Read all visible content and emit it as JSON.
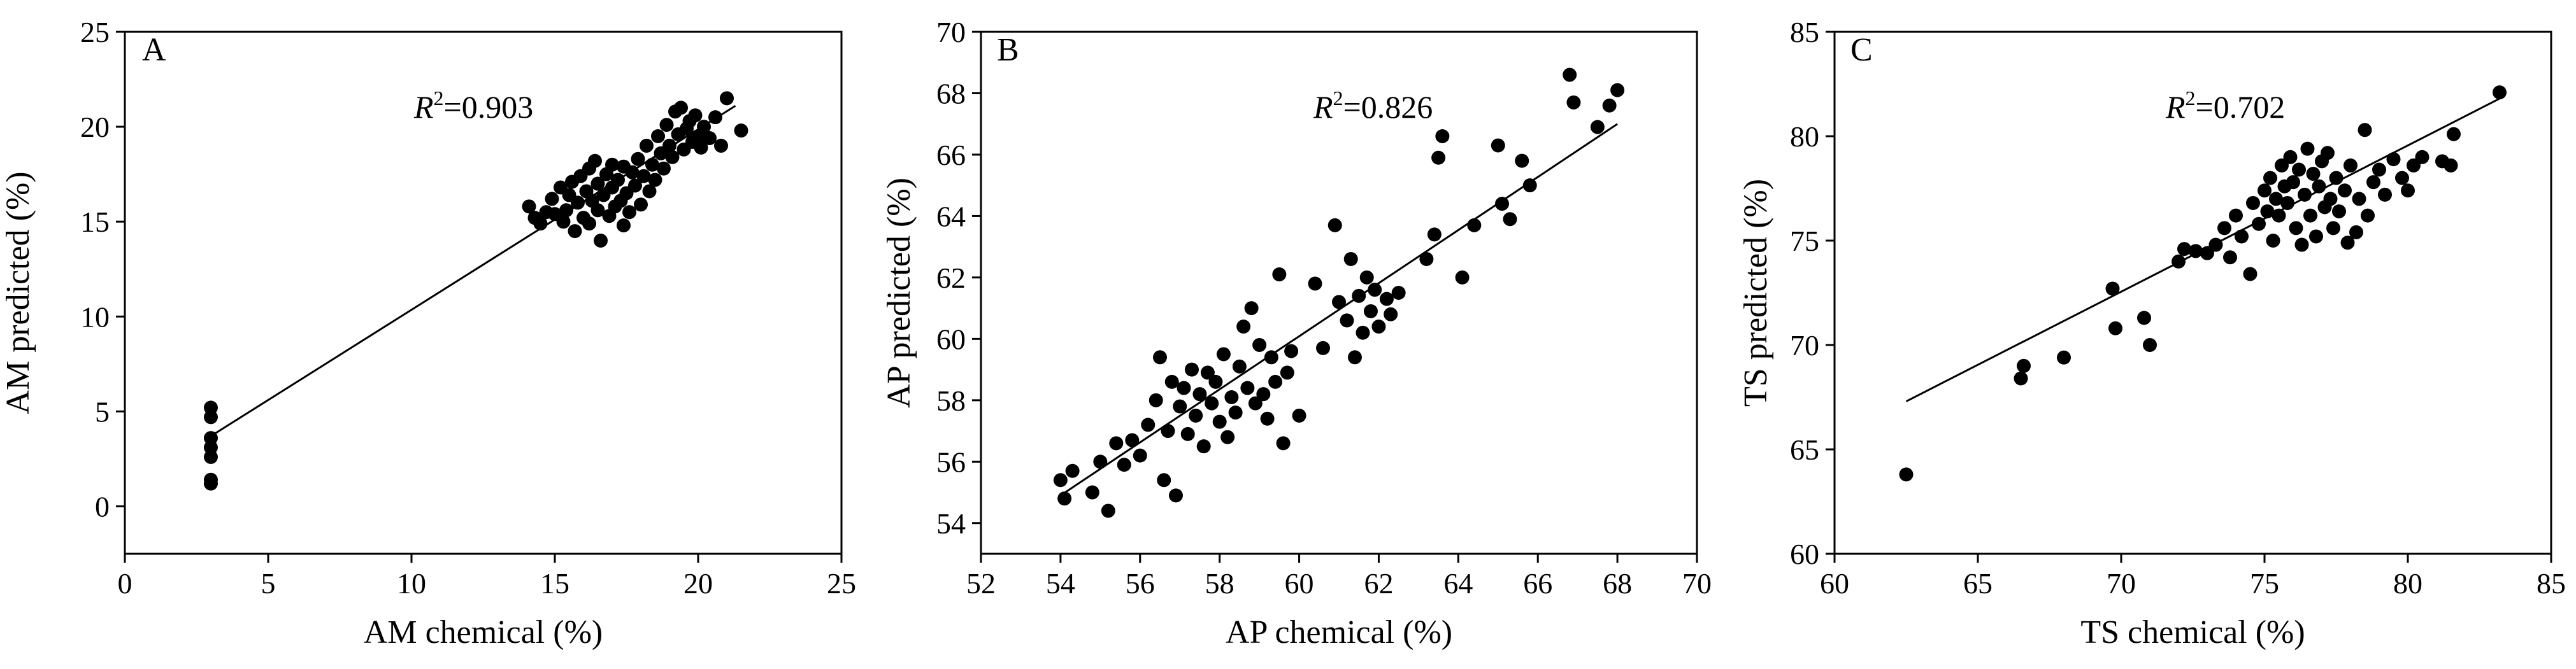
{
  "chart_data": [
    {
      "type": "scatter",
      "panel_label": "A",
      "annotation": {
        "prefix": "R",
        "sup": "2",
        "value": "=0.903"
      },
      "xlabel": "AM chemical (%)",
      "ylabel": "AM predicted (%)",
      "xlim": [
        0,
        25
      ],
      "ylim": [
        -2.5,
        25
      ],
      "xticks": [
        0,
        5,
        10,
        15,
        20,
        25
      ],
      "yticks": [
        0,
        5,
        10,
        15,
        20,
        25
      ],
      "grid": false,
      "fit_line": {
        "x": [
          3.0,
          21.3
        ],
        "y": [
          3.7,
          21.1
        ]
      },
      "points": [
        [
          3.0,
          5.2
        ],
        [
          3.0,
          4.7
        ],
        [
          3.0,
          3.6
        ],
        [
          3.0,
          3.1
        ],
        [
          3.0,
          2.6
        ],
        [
          3.0,
          1.4
        ],
        [
          3.0,
          1.2
        ],
        [
          14.1,
          15.8
        ],
        [
          14.3,
          15.2
        ],
        [
          14.5,
          14.9
        ],
        [
          14.7,
          15.5
        ],
        [
          14.9,
          16.2
        ],
        [
          15.0,
          15.4
        ],
        [
          15.2,
          16.8
        ],
        [
          15.3,
          15.0
        ],
        [
          15.4,
          15.6
        ],
        [
          15.5,
          16.4
        ],
        [
          15.6,
          17.1
        ],
        [
          15.7,
          14.5
        ],
        [
          15.8,
          16.0
        ],
        [
          15.9,
          17.4
        ],
        [
          16.0,
          15.2
        ],
        [
          16.1,
          16.6
        ],
        [
          16.2,
          17.8
        ],
        [
          16.2,
          14.9
        ],
        [
          16.3,
          16.1
        ],
        [
          16.4,
          18.2
        ],
        [
          16.5,
          15.6
        ],
        [
          16.5,
          17.0
        ],
        [
          16.6,
          14.0
        ],
        [
          16.7,
          16.4
        ],
        [
          16.8,
          17.5
        ],
        [
          16.9,
          15.3
        ],
        [
          17.0,
          16.8
        ],
        [
          17.0,
          18.0
        ],
        [
          17.1,
          15.8
        ],
        [
          17.2,
          17.2
        ],
        [
          17.3,
          16.1
        ],
        [
          17.4,
          14.8
        ],
        [
          17.4,
          17.9
        ],
        [
          17.5,
          16.5
        ],
        [
          17.6,
          15.5
        ],
        [
          17.7,
          17.6
        ],
        [
          17.8,
          16.9
        ],
        [
          17.9,
          18.3
        ],
        [
          18.0,
          15.9
        ],
        [
          18.1,
          17.4
        ],
        [
          18.2,
          19.0
        ],
        [
          18.3,
          16.6
        ],
        [
          18.4,
          18.0
        ],
        [
          18.5,
          17.2
        ],
        [
          18.6,
          19.5
        ],
        [
          18.7,
          18.6
        ],
        [
          18.8,
          17.8
        ],
        [
          18.9,
          20.1
        ],
        [
          19.0,
          19.0
        ],
        [
          19.1,
          18.4
        ],
        [
          19.2,
          20.8
        ],
        [
          19.3,
          19.6
        ],
        [
          19.4,
          21.0
        ],
        [
          19.5,
          18.8
        ],
        [
          19.6,
          19.9
        ],
        [
          19.7,
          20.3
        ],
        [
          19.8,
          19.2
        ],
        [
          19.9,
          20.6
        ],
        [
          20.0,
          19.5
        ],
        [
          20.1,
          18.9
        ],
        [
          20.2,
          20.0
        ],
        [
          20.4,
          19.4
        ],
        [
          20.6,
          20.5
        ],
        [
          20.8,
          19.0
        ],
        [
          21.0,
          21.5
        ],
        [
          21.5,
          19.8
        ]
      ]
    },
    {
      "type": "scatter",
      "panel_label": "B",
      "annotation": {
        "prefix": "R",
        "sup": "2",
        "value": "=0.826"
      },
      "xlabel": "AP chemical (%)",
      "ylabel": "AP predicted (%)",
      "xlim": [
        52,
        70
      ],
      "ylim": [
        53,
        70
      ],
      "xticks": [
        52,
        54,
        56,
        58,
        60,
        62,
        64,
        66,
        68,
        70
      ],
      "yticks": [
        54,
        56,
        58,
        60,
        62,
        64,
        66,
        68,
        70
      ],
      "grid": false,
      "fit_line": {
        "x": [
          54.0,
          68.0
        ],
        "y": [
          54.9,
          67.0
        ]
      },
      "points": [
        [
          54.0,
          55.4
        ],
        [
          54.1,
          54.8
        ],
        [
          54.3,
          55.7
        ],
        [
          54.8,
          55.0
        ],
        [
          55.0,
          56.0
        ],
        [
          55.2,
          54.4
        ],
        [
          55.4,
          56.6
        ],
        [
          55.6,
          55.9
        ],
        [
          55.8,
          56.7
        ],
        [
          56.0,
          56.2
        ],
        [
          56.2,
          57.2
        ],
        [
          56.4,
          58.0
        ],
        [
          56.5,
          59.4
        ],
        [
          56.6,
          55.4
        ],
        [
          56.7,
          57.0
        ],
        [
          56.8,
          58.6
        ],
        [
          56.9,
          54.9
        ],
        [
          57.0,
          57.8
        ],
        [
          57.1,
          58.4
        ],
        [
          57.2,
          56.9
        ],
        [
          57.3,
          59.0
        ],
        [
          57.4,
          57.5
        ],
        [
          57.5,
          58.2
        ],
        [
          57.6,
          56.5
        ],
        [
          57.7,
          58.9
        ],
        [
          57.8,
          57.9
        ],
        [
          57.9,
          58.6
        ],
        [
          58.0,
          57.3
        ],
        [
          58.1,
          59.5
        ],
        [
          58.2,
          56.8
        ],
        [
          58.3,
          58.1
        ],
        [
          58.4,
          57.6
        ],
        [
          58.5,
          59.1
        ],
        [
          58.6,
          60.4
        ],
        [
          58.7,
          58.4
        ],
        [
          58.8,
          61.0
        ],
        [
          58.9,
          57.9
        ],
        [
          59.0,
          59.8
        ],
        [
          59.1,
          58.2
        ],
        [
          59.2,
          57.4
        ],
        [
          59.3,
          59.4
        ],
        [
          59.4,
          58.6
        ],
        [
          59.5,
          62.1
        ],
        [
          59.6,
          56.6
        ],
        [
          59.7,
          58.9
        ],
        [
          59.8,
          59.6
        ],
        [
          60.0,
          57.5
        ],
        [
          60.4,
          61.8
        ],
        [
          60.6,
          59.7
        ],
        [
          60.9,
          63.7
        ],
        [
          61.0,
          61.2
        ],
        [
          61.2,
          60.6
        ],
        [
          61.3,
          62.6
        ],
        [
          61.4,
          59.4
        ],
        [
          61.5,
          61.4
        ],
        [
          61.6,
          60.2
        ],
        [
          61.7,
          62.0
        ],
        [
          61.8,
          60.9
        ],
        [
          61.9,
          61.6
        ],
        [
          62.0,
          60.4
        ],
        [
          62.2,
          61.3
        ],
        [
          62.3,
          60.8
        ],
        [
          62.5,
          61.5
        ],
        [
          63.2,
          62.6
        ],
        [
          63.4,
          63.4
        ],
        [
          63.5,
          65.9
        ],
        [
          63.6,
          66.6
        ],
        [
          64.1,
          62.0
        ],
        [
          64.4,
          63.7
        ],
        [
          65.0,
          66.3
        ],
        [
          65.1,
          64.4
        ],
        [
          65.3,
          63.9
        ],
        [
          65.6,
          65.8
        ],
        [
          65.8,
          65.0
        ],
        [
          66.8,
          68.6
        ],
        [
          66.9,
          67.7
        ],
        [
          67.5,
          66.9
        ],
        [
          67.8,
          67.6
        ],
        [
          68.0,
          68.1
        ]
      ]
    },
    {
      "type": "scatter",
      "panel_label": "C",
      "annotation": {
        "prefix": "R",
        "sup": "2",
        "value": "=0.702"
      },
      "xlabel": "TS chemical (%)",
      "ylabel": "TS predicted (%)",
      "xlim": [
        60,
        85
      ],
      "ylim": [
        60,
        85
      ],
      "xticks": [
        60,
        65,
        70,
        75,
        80,
        85
      ],
      "yticks": [
        60,
        65,
        70,
        75,
        80,
        85
      ],
      "grid": false,
      "fit_line": {
        "x": [
          62.5,
          83.2
        ],
        "y": [
          67.3,
          81.8
        ]
      },
      "points": [
        [
          62.5,
          63.8
        ],
        [
          66.5,
          68.4
        ],
        [
          66.6,
          69.0
        ],
        [
          68.0,
          69.4
        ],
        [
          69.7,
          72.7
        ],
        [
          69.8,
          70.8
        ],
        [
          70.8,
          71.3
        ],
        [
          71.0,
          70.0
        ],
        [
          72.0,
          74.0
        ],
        [
          72.2,
          74.6
        ],
        [
          72.6,
          74.5
        ],
        [
          73.0,
          74.4
        ],
        [
          73.3,
          74.8
        ],
        [
          73.6,
          75.6
        ],
        [
          73.8,
          74.2
        ],
        [
          74.0,
          76.2
        ],
        [
          74.2,
          75.2
        ],
        [
          74.5,
          73.4
        ],
        [
          74.6,
          76.8
        ],
        [
          74.8,
          75.8
        ],
        [
          75.0,
          77.4
        ],
        [
          75.1,
          76.4
        ],
        [
          75.2,
          78.0
        ],
        [
          75.3,
          75.0
        ],
        [
          75.4,
          77.0
        ],
        [
          75.5,
          76.2
        ],
        [
          75.6,
          78.6
        ],
        [
          75.7,
          77.6
        ],
        [
          75.8,
          76.8
        ],
        [
          75.9,
          79.0
        ],
        [
          76.0,
          77.8
        ],
        [
          76.1,
          75.6
        ],
        [
          76.2,
          78.4
        ],
        [
          76.3,
          74.8
        ],
        [
          76.4,
          77.2
        ],
        [
          76.5,
          79.4
        ],
        [
          76.6,
          76.2
        ],
        [
          76.7,
          78.2
        ],
        [
          76.8,
          75.2
        ],
        [
          76.9,
          77.6
        ],
        [
          77.0,
          78.8
        ],
        [
          77.1,
          76.6
        ],
        [
          77.2,
          79.2
        ],
        [
          77.3,
          77.0
        ],
        [
          77.4,
          75.6
        ],
        [
          77.5,
          78.0
        ],
        [
          77.6,
          76.4
        ],
        [
          77.8,
          77.4
        ],
        [
          77.9,
          74.9
        ],
        [
          78.0,
          78.6
        ],
        [
          78.2,
          75.4
        ],
        [
          78.3,
          77.0
        ],
        [
          78.5,
          80.3
        ],
        [
          78.6,
          76.2
        ],
        [
          78.8,
          77.8
        ],
        [
          79.0,
          78.4
        ],
        [
          79.2,
          77.2
        ],
        [
          79.5,
          78.9
        ],
        [
          79.8,
          78.0
        ],
        [
          80.0,
          77.4
        ],
        [
          80.2,
          78.6
        ],
        [
          80.5,
          79.0
        ],
        [
          81.2,
          78.8
        ],
        [
          81.5,
          78.6
        ],
        [
          81.6,
          80.1
        ],
        [
          83.2,
          82.1
        ]
      ]
    }
  ]
}
